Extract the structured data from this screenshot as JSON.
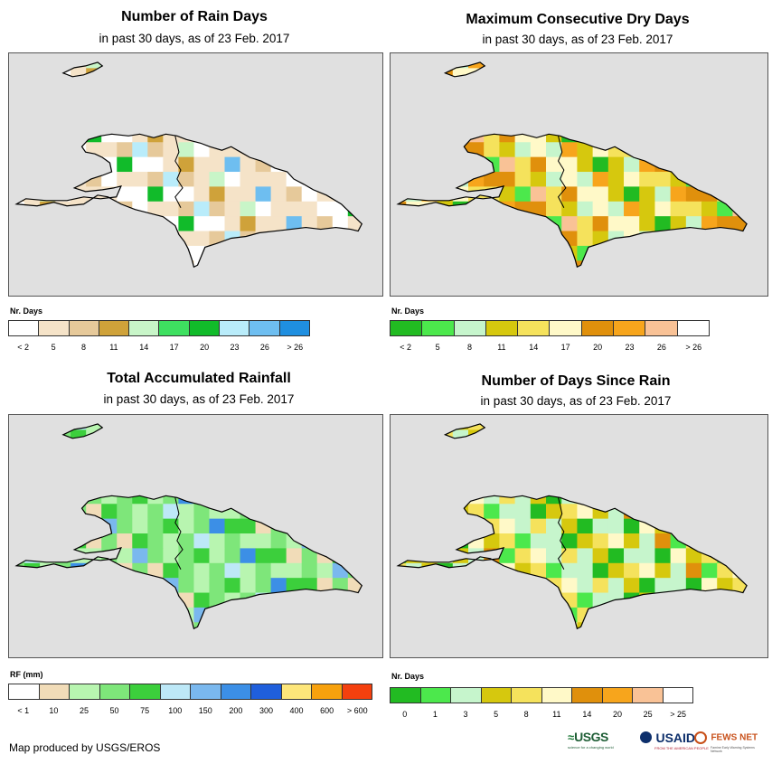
{
  "panels": [
    {
      "title": "Number of Rain Days",
      "subtitle": "in past 30 days, as of 23 Feb. 2017",
      "legend_unit": "Nr. Days",
      "legend_colors": [
        "#ffffff",
        "#f5e3c8",
        "#e6c99a",
        "#cfa23a",
        "#c8f5c8",
        "#3ee060",
        "#11bb2a",
        "#b9ecfa",
        "#6ebef0",
        "#1f8fe0"
      ],
      "legend_labels": [
        "< 2",
        "5",
        "8",
        "11",
        "14",
        "17",
        "20",
        "23",
        "26",
        "> 26"
      ]
    },
    {
      "title": "Maximum Consecutive Dry Days",
      "subtitle": "in past 30 days, as of 23 Feb. 2017",
      "legend_unit": "Nr. Days",
      "legend_colors": [
        "#22bb22",
        "#4ce84c",
        "#c6f5cc",
        "#d6c80e",
        "#f5e25c",
        "#fff9c8",
        "#e0900c",
        "#f7a51c",
        "#f9c296",
        "#ffffff"
      ],
      "legend_labels": [
        "< 2",
        "5",
        "8",
        "11",
        "14",
        "17",
        "20",
        "23",
        "26",
        "> 26"
      ]
    },
    {
      "title": "Total Accumulated Rainfall",
      "subtitle": "in past 30 days, as of 23 Feb. 2017",
      "legend_unit": "RF (mm)",
      "legend_colors": [
        "#ffffff",
        "#f1dcb8",
        "#b8f5b0",
        "#7ee67a",
        "#3ccf3c",
        "#bde8f7",
        "#7ab8ee",
        "#3c8fe6",
        "#1f5fdc",
        "#fde67a",
        "#f7a10d",
        "#f4400e"
      ],
      "legend_labels": [
        "< 1",
        "10",
        "25",
        "50",
        "75",
        "100",
        "150",
        "200",
        "300",
        "400",
        "600",
        "> 600"
      ]
    },
    {
      "title": "Number of Days Since Rain",
      "subtitle": "in past 30 days, as of 23 Feb. 2017",
      "legend_unit": "Nr. Days",
      "legend_colors": [
        "#22bb22",
        "#4ce84c",
        "#c6f5cc",
        "#d6c80e",
        "#f5e25c",
        "#fff9c8",
        "#e0900c",
        "#f7a51c",
        "#f9c296",
        "#ffffff"
      ],
      "legend_labels": [
        "0",
        "1",
        "3",
        "5",
        "8",
        "11",
        "14",
        "20",
        "25",
        "> 25"
      ]
    }
  ],
  "credit": "Map produced by USGS/EROS",
  "logos": {
    "usgs": "USGS",
    "usgs_tagline": "science for a changing world",
    "usaid": "USAID",
    "usaid_tagline": "FROM THE AMERICAN PEOPLE",
    "fewsnet": "FEWS NET",
    "fewsnet_tagline": "Famine Early Warning Systems Network"
  }
}
